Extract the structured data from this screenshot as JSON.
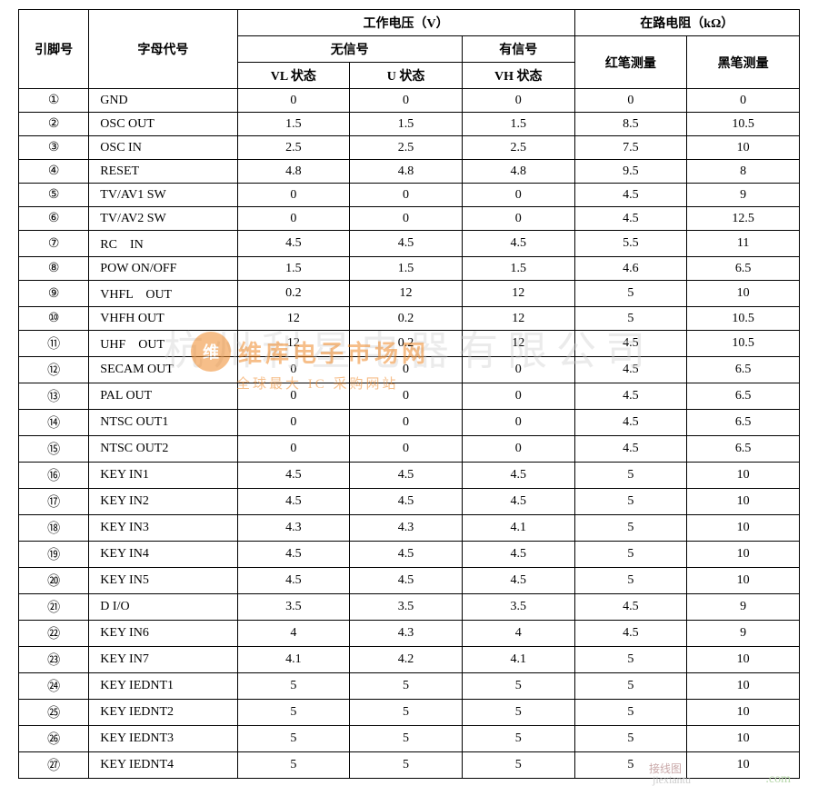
{
  "headers": {
    "pin": "引脚号",
    "label": "字母代号",
    "voltage_group": "工作电压（V）",
    "resistance_group": "在路电阻（kΩ）",
    "no_signal": "无信号",
    "with_signal": "有信号",
    "vl_state": "VL 状态",
    "u_state": "U 状态",
    "vh_state": "VH 状态",
    "red_probe": "红笔测量",
    "black_probe": "黑笔测量"
  },
  "rows": [
    {
      "pin": "①",
      "label": "GND",
      "vl": "0",
      "u": "0",
      "vh": "0",
      "red": "0",
      "black": "0"
    },
    {
      "pin": "②",
      "label": "OSC OUT",
      "vl": "1.5",
      "u": "1.5",
      "vh": "1.5",
      "red": "8.5",
      "black": "10.5"
    },
    {
      "pin": "③",
      "label": "OSC IN",
      "vl": "2.5",
      "u": "2.5",
      "vh": "2.5",
      "red": "7.5",
      "black": "10"
    },
    {
      "pin": "④",
      "label": "RESET",
      "vl": "4.8",
      "u": "4.8",
      "vh": "4.8",
      "red": "9.5",
      "black": "8"
    },
    {
      "pin": "⑤",
      "label": "TV/AV1 SW",
      "vl": "0",
      "u": "0",
      "vh": "0",
      "red": "4.5",
      "black": "9"
    },
    {
      "pin": "⑥",
      "label": "TV/AV2 SW",
      "vl": "0",
      "u": "0",
      "vh": "0",
      "red": "4.5",
      "black": "12.5"
    },
    {
      "pin": "⑦",
      "label": "RC　IN",
      "vl": "4.5",
      "u": "4.5",
      "vh": "4.5",
      "red": "5.5",
      "black": "11"
    },
    {
      "pin": "⑧",
      "label": "POW ON/OFF",
      "vl": "1.5",
      "u": "1.5",
      "vh": "1.5",
      "red": "4.6",
      "black": "6.5"
    },
    {
      "pin": "⑨",
      "label": "VHFL　OUT",
      "vl": "0.2",
      "u": "12",
      "vh": "12",
      "red": "5",
      "black": "10"
    },
    {
      "pin": "⑩",
      "label": "VHFH OUT",
      "vl": "12",
      "u": "0.2",
      "vh": "12",
      "red": "5",
      "black": "10.5"
    },
    {
      "pin": "⑪",
      "label": "UHF　OUT",
      "vl": "12",
      "u": "0.2",
      "vh": "12",
      "red": "4.5",
      "black": "10.5"
    },
    {
      "pin": "⑫",
      "label": "SECAM OUT",
      "vl": "0",
      "u": "0",
      "vh": "0",
      "red": "4.5",
      "black": "6.5"
    },
    {
      "pin": "⑬",
      "label": "PAL OUT",
      "vl": "0",
      "u": "0",
      "vh": "0",
      "red": "4.5",
      "black": "6.5"
    },
    {
      "pin": "⑭",
      "label": "NTSC OUT1",
      "vl": "0",
      "u": "0",
      "vh": "0",
      "red": "4.5",
      "black": "6.5"
    },
    {
      "pin": "⑮",
      "label": "NTSC OUT2",
      "vl": "0",
      "u": "0",
      "vh": "0",
      "red": "4.5",
      "black": "6.5"
    },
    {
      "pin": "⑯",
      "label": "KEY IN1",
      "vl": "4.5",
      "u": "4.5",
      "vh": "4.5",
      "red": "5",
      "black": "10"
    },
    {
      "pin": "⑰",
      "label": "KEY IN2",
      "vl": "4.5",
      "u": "4.5",
      "vh": "4.5",
      "red": "5",
      "black": "10"
    },
    {
      "pin": "⑱",
      "label": "KEY IN3",
      "vl": "4.3",
      "u": "4.3",
      "vh": "4.1",
      "red": "5",
      "black": "10"
    },
    {
      "pin": "⑲",
      "label": "KEY IN4",
      "vl": "4.5",
      "u": "4.5",
      "vh": "4.5",
      "red": "5",
      "black": "10"
    },
    {
      "pin": "⑳",
      "label": "KEY IN5",
      "vl": "4.5",
      "u": "4.5",
      "vh": "4.5",
      "red": "5",
      "black": "10"
    },
    {
      "pin": "㉑",
      "label": "D I/O",
      "vl": "3.5",
      "u": "3.5",
      "vh": "3.5",
      "red": "4.5",
      "black": "9"
    },
    {
      "pin": "㉒",
      "label": "KEY IN6",
      "vl": "4",
      "u": "4.3",
      "vh": "4",
      "red": "4.5",
      "black": "9"
    },
    {
      "pin": "㉓",
      "label": "KEY IN7",
      "vl": "4.1",
      "u": "4.2",
      "vh": "4.1",
      "red": "5",
      "black": "10"
    },
    {
      "pin": "㉔",
      "label": "KEY IEDNT1",
      "vl": "5",
      "u": "5",
      "vh": "5",
      "red": "5",
      "black": "10"
    },
    {
      "pin": "㉕",
      "label": "KEY IEDNT2",
      "vl": "5",
      "u": "5",
      "vh": "5",
      "red": "5",
      "black": "10"
    },
    {
      "pin": "㉖",
      "label": "KEY IEDNT3",
      "vl": "5",
      "u": "5",
      "vh": "5",
      "red": "5",
      "black": "10"
    },
    {
      "pin": "㉗",
      "label": "KEY IEDNT4",
      "vl": "5",
      "u": "5",
      "vh": "5",
      "red": "5",
      "black": "10"
    }
  ],
  "watermarks": {
    "big_gray": "杭州利星电器有限公司",
    "logo_text": "维",
    "orange_line1": "维库电子市场网",
    "orange_line2": "全球最大 IC 采购网站",
    "footer_green": ".com",
    "footer_gray": "jiexiantu",
    "footer_pink": "接线图"
  },
  "style": {
    "border_color": "#000000",
    "background": "#ffffff",
    "header_fontsize": 14,
    "cell_fontsize": 14,
    "wm_orange": "#f08a2a",
    "wm_gray": "#cfcfcf"
  }
}
